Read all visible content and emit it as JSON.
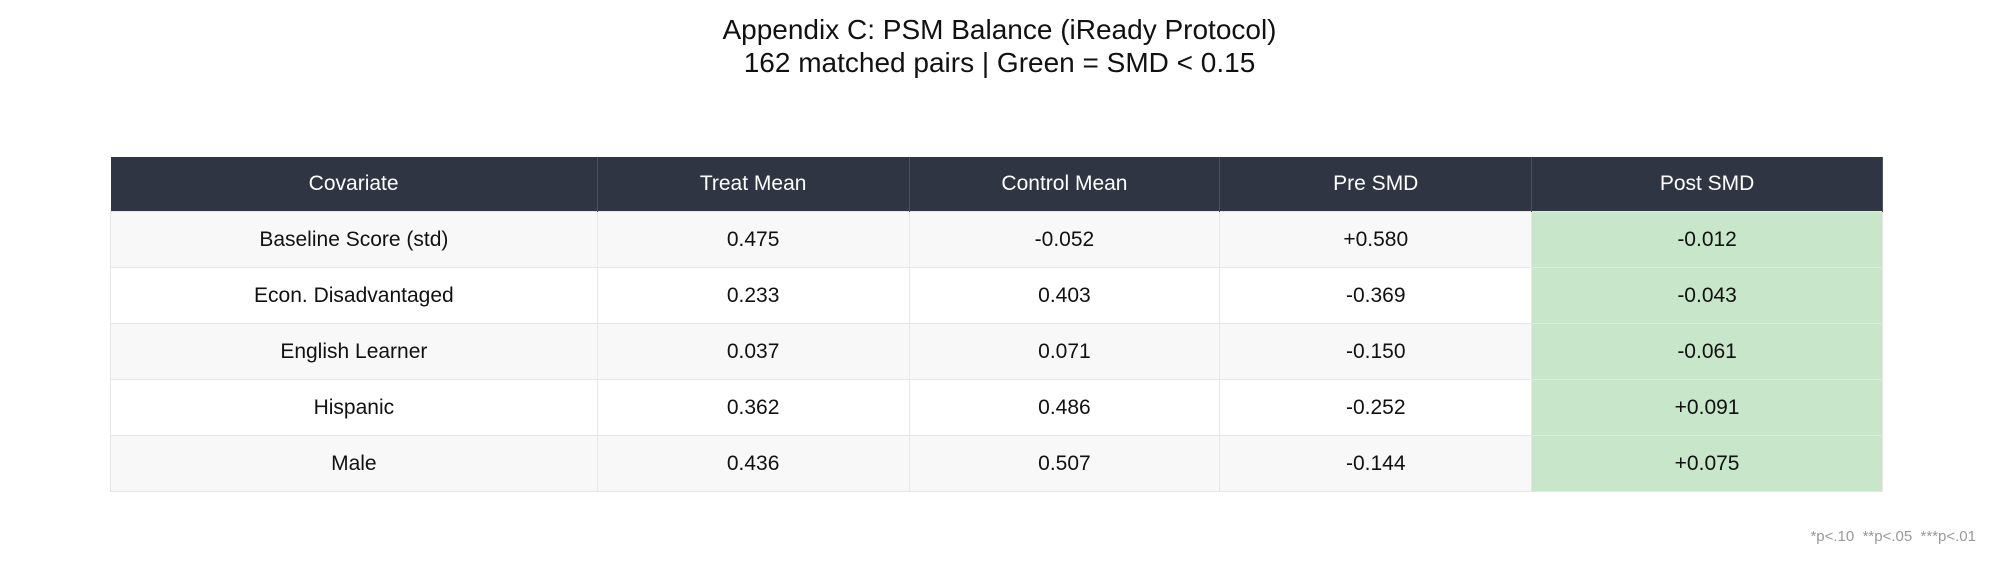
{
  "header": {
    "title": "Appendix C: PSM Balance (iReady Protocol)",
    "subtitle": "162 matched pairs | Green = SMD < 0.15"
  },
  "table": {
    "columns": [
      "Covariate",
      "Treat Mean",
      "Control Mean",
      "Pre SMD",
      "Post SMD"
    ],
    "rows": [
      [
        "Baseline Score (std)",
        "0.475",
        "-0.052",
        "+0.580",
        "-0.012"
      ],
      [
        "Econ. Disadvantaged",
        "0.233",
        "0.403",
        "-0.369",
        "-0.043"
      ],
      [
        "English Learner",
        "0.037",
        "0.071",
        "-0.150",
        "-0.061"
      ],
      [
        "Hispanic",
        "0.362",
        "0.486",
        "-0.252",
        "+0.091"
      ],
      [
        "Male",
        "0.436",
        "0.507",
        "-0.144",
        "+0.075"
      ]
    ]
  },
  "footnote": "*p<.10  **p<.05  ***p<.01"
}
